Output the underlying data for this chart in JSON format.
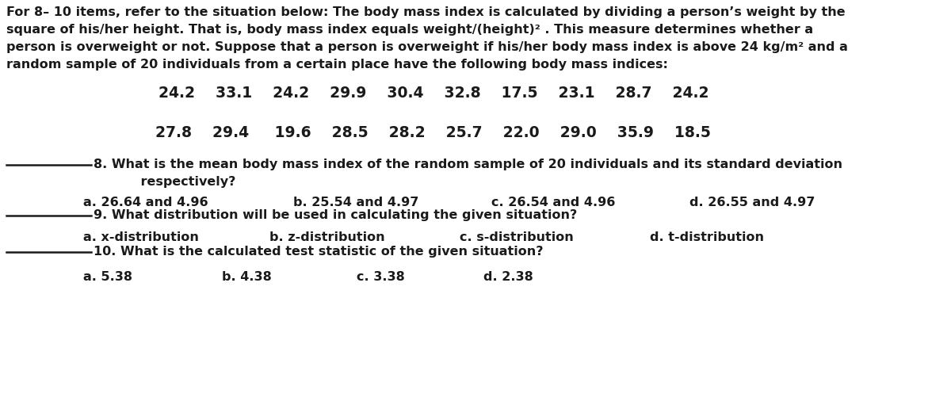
{
  "background_color": "#ffffff",
  "text_color": "#1a1a1a",
  "intro_line1": "For 8– 10 items, refer to the situation below: The body mass index is calculated by dividing a person’s weight by the",
  "intro_line2": "square of his/her height. That is, body mass index equals weight/(height)² . This measure determines whether a",
  "intro_line3": "person is overweight or not. Suppose that a person is overweight if his/her body mass index is above 24 kg/m² and a",
  "intro_line4": "random sample of 20 individuals from a certain place have the following body mass indices:",
  "row1": "24.2    33.1    24.2    29.9    30.4    32.8    17.5    23.1    28.7    24.2",
  "row2": "27.8    29.4     19.6    28.5    28.2    25.7    22.0    29.0    35.9    18.5",
  "q8_line1": "8. What is the mean body mass index of the random sample of 20 individuals and its standard deviation",
  "q8_line2": "    respectively?",
  "q8_a": "a. 26.64 and 4.96",
  "q8_b": "b. 25.54 and 4.97",
  "q8_c": "c. 26.54 and 4.96",
  "q8_d": "d. 26.55 and 4.97",
  "q9_line": "9. What distribution will be used in calculating the given situation?",
  "q9_a": "a. x-distribution",
  "q9_b": "b. z-distribution",
  "q9_c": "c. s-distribution",
  "q9_d": "d. t-distribution",
  "q10_line": "10. What is the calculated test statistic of the given situation?",
  "q10_a": "a. 5.38",
  "q10_b": "b. 4.38",
  "q10_c": "c. 3.38",
  "q10_d": "d. 2.38",
  "fig_width": 12.0,
  "fig_height": 5.11,
  "dpi": 100
}
